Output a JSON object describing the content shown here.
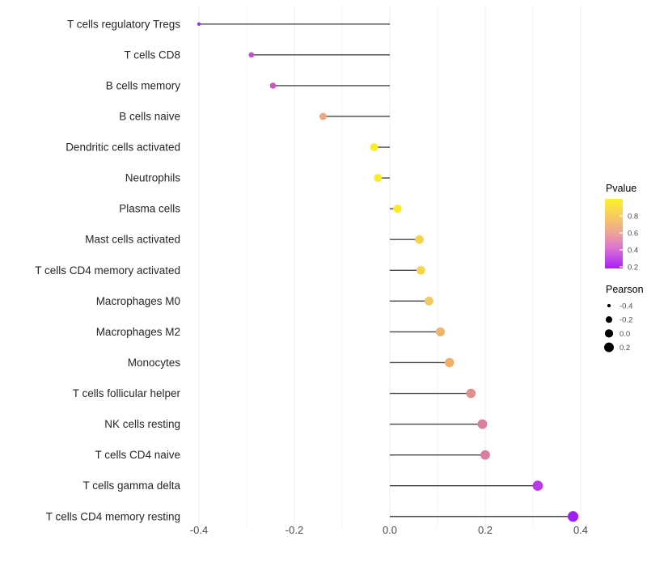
{
  "chart_data": {
    "type": "lollipop",
    "title": "",
    "xlabel": "",
    "ylabel": "",
    "xlim": [
      -0.42,
      0.47
    ],
    "grid": "vertical-only",
    "x_axis": {
      "major_ticks": [
        {
          "label": "-0.4",
          "value": -0.4
        },
        {
          "label": "-0.2",
          "value": -0.2
        },
        {
          "label": "0.0",
          "value": 0.0
        },
        {
          "label": "0.2",
          "value": 0.2
        },
        {
          "label": "0.4",
          "value": 0.4
        }
      ],
      "minor_ticks": [
        -0.3,
        -0.1,
        0.1,
        0.3
      ]
    },
    "rows": [
      {
        "label": "T cells regulatory  Tregs",
        "pearson": -0.4,
        "color": "#9430E0"
      },
      {
        "label": "T cells CD8",
        "pearson": -0.29,
        "color": "#C251C9"
      },
      {
        "label": "B cells memory",
        "pearson": -0.245,
        "color": "#C65BBD"
      },
      {
        "label": "B cells naive",
        "pearson": -0.14,
        "color": "#EDA67F"
      },
      {
        "label": "Dendritic cells activated",
        "pearson": -0.033,
        "color": "#FBEB2D"
      },
      {
        "label": "Neutrophils",
        "pearson": -0.025,
        "color": "#FBEB2D"
      },
      {
        "label": "Plasma cells",
        "pearson": 0.016,
        "color": "#FCEC27"
      },
      {
        "label": "Mast cells activated",
        "pearson": 0.062,
        "color": "#F5D54E"
      },
      {
        "label": "T cells CD4 memory activated",
        "pearson": 0.065,
        "color": "#F5D54E"
      },
      {
        "label": "Macrophages M0",
        "pearson": 0.082,
        "color": "#F3C961"
      },
      {
        "label": "Macrophages M2",
        "pearson": 0.106,
        "color": "#F0B56A"
      },
      {
        "label": "Monocytes",
        "pearson": 0.125,
        "color": "#EFAD68"
      },
      {
        "label": "T cells follicular helper",
        "pearson": 0.17,
        "color": "#E08F8E"
      },
      {
        "label": "NK cells resting",
        "pearson": 0.194,
        "color": "#DB809C"
      },
      {
        "label": "T cells CD4 naive",
        "pearson": 0.2,
        "color": "#DB7FA2"
      },
      {
        "label": "T cells gamma delta",
        "pearson": 0.31,
        "color": "#B93BE6"
      },
      {
        "label": "T cells CD4 memory resting",
        "pearson": 0.384,
        "color": "#9E20F4"
      }
    ],
    "legend_pvalue": {
      "title": "Pvalue",
      "ticks": [
        "0.8",
        "0.6",
        "0.4",
        "0.2"
      ],
      "gradient_stops": [
        {
          "offset": 0,
          "color": "#FCF12C"
        },
        {
          "offset": 0.3,
          "color": "#F4C36C"
        },
        {
          "offset": 0.5,
          "color": "#EDA29A"
        },
        {
          "offset": 0.7,
          "color": "#DD74CE"
        },
        {
          "offset": 0.87,
          "color": "#C046EC"
        },
        {
          "offset": 1,
          "color": "#A921F6"
        }
      ]
    },
    "legend_pearson": {
      "title": "Pearson",
      "items": [
        {
          "label": "-0.4",
          "value": -0.4
        },
        {
          "label": "-0.2",
          "value": -0.2
        },
        {
          "label": "0.0",
          "value": 0.0
        },
        {
          "label": "0.2",
          "value": 0.2
        }
      ]
    },
    "style_colors": {
      "stem": "#454545",
      "grid_major": "#ECECEC",
      "grid_minor": "#F5F5F5",
      "background": "#FFFFFF"
    }
  }
}
